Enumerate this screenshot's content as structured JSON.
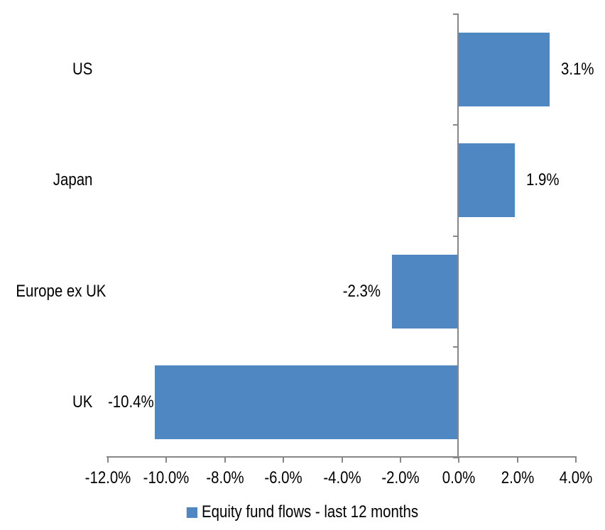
{
  "chart_data": {
    "type": "bar",
    "orientation": "horizontal",
    "categories": [
      "US",
      "Japan",
      "Europe ex UK",
      "UK"
    ],
    "values": [
      3.1,
      1.9,
      -2.3,
      -10.4
    ],
    "value_labels": [
      "3.1%",
      "1.9%",
      "-2.3%",
      "-10.4%"
    ],
    "series_name": "Equity fund flows - last 12 months",
    "xlim": [
      -12,
      4
    ],
    "x_tick_values": [
      -12,
      -10,
      -8,
      -6,
      -4,
      -2,
      0,
      2,
      4
    ],
    "x_tick_labels": [
      "-12.0%",
      "-10.0%",
      "-8.0%",
      "-6.0%",
      "-4.0%",
      "-2.0%",
      "0.0%",
      "2.0%",
      "4.0%"
    ],
    "grid": false,
    "legend_position": "bottom",
    "colors": {
      "bar": "#4E87C1",
      "axis": "#878787",
      "text": "#000000",
      "background": "#FFFFFF"
    }
  },
  "legend": {
    "label": "Equity fund flows - last 12 months"
  }
}
